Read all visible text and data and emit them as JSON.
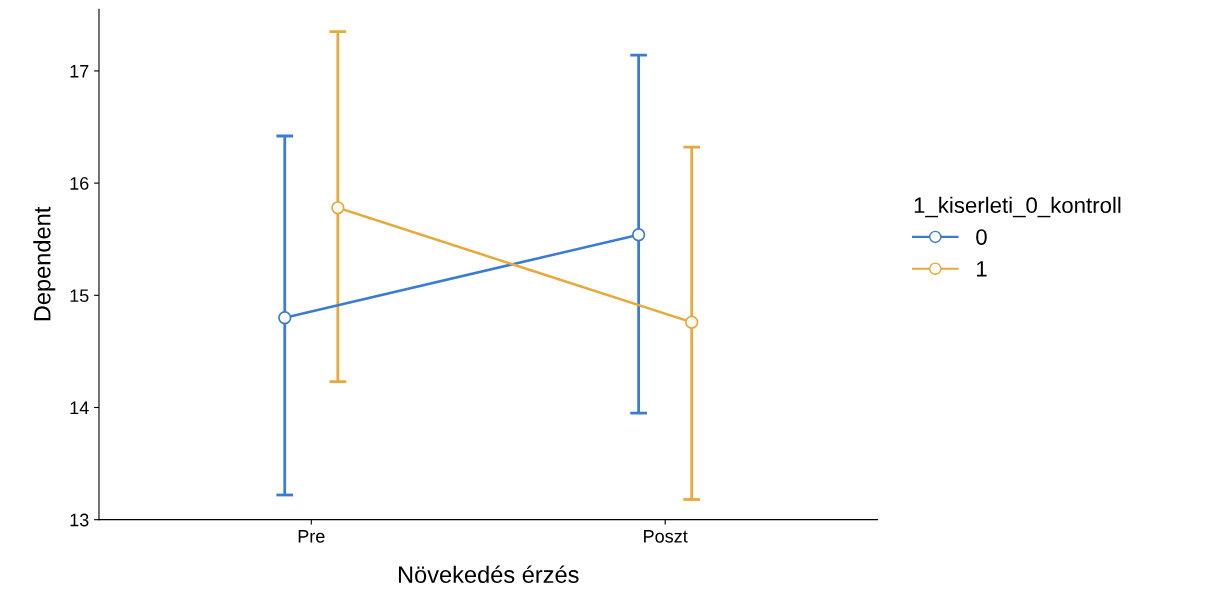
{
  "chart_data": {
    "type": "line",
    "xlabel": "Növekedés érzés",
    "ylabel": "Dependent",
    "legend_title": "1_kiserleti_0_kontroll",
    "categories": [
      "Pre",
      "Poszt"
    ],
    "series": [
      {
        "name": "0",
        "color": "#3a7bd5",
        "values": [
          14.8,
          15.54
        ],
        "errors": [
          [
            13.22,
            16.42
          ],
          [
            13.95,
            17.14
          ]
        ]
      },
      {
        "name": "1",
        "color": "#e6a93a",
        "values": [
          15.78,
          14.76
        ],
        "errors": [
          [
            14.23,
            17.35
          ],
          [
            13.18,
            16.32
          ]
        ]
      }
    ],
    "ylim": [
      13,
      17.55
    ],
    "yticks": [
      13,
      14,
      15,
      16,
      17
    ],
    "grid": false,
    "legend": "right",
    "marker": "circle",
    "line_style": "solid"
  }
}
